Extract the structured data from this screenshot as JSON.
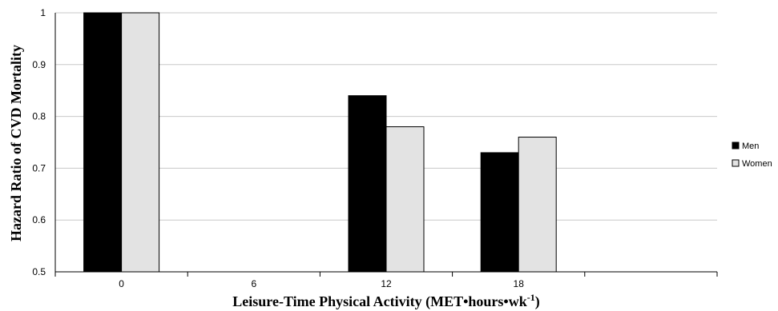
{
  "chart_data": {
    "type": "bar",
    "title": "",
    "xlabel": "Leisure-Time Physical Activity (MET•hours•wk",
    "xlabel_superscript": "-1",
    "xlabel_suffix": ")",
    "ylabel": "Hazard Ratio of CVD Mortality",
    "categories": [
      "0",
      "6",
      "12",
      "18",
      ""
    ],
    "ylim": [
      0.5,
      1.0
    ],
    "yticks": [
      "0.5",
      "0.6",
      "0.7",
      "0.8",
      "0.9",
      "1"
    ],
    "grid": true,
    "legend_position": "right",
    "series": [
      {
        "name": "Men",
        "color": "#000000",
        "values": [
          1.0,
          null,
          0.84,
          0.73,
          null
        ]
      },
      {
        "name": "Women",
        "color": "#e3e3e3",
        "values": [
          1.0,
          null,
          0.78,
          0.76,
          null
        ]
      }
    ]
  }
}
